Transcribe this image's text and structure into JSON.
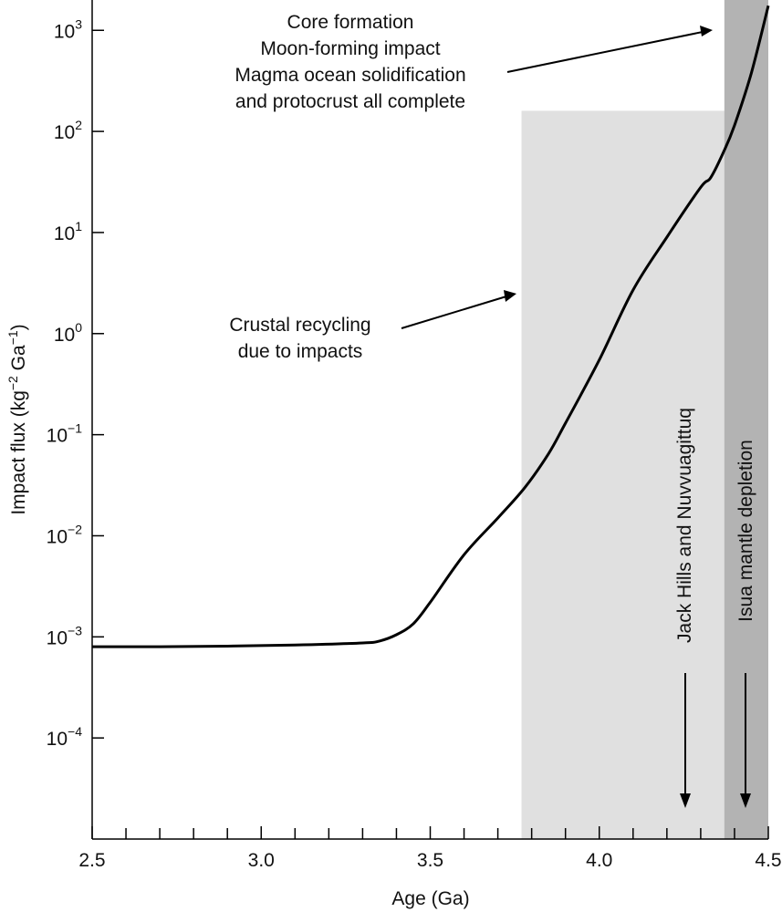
{
  "chart_data": {
    "type": "line",
    "title": "",
    "xlabel": "Age (Ga)",
    "ylabel": {
      "base": "Impact flux (kg",
      "exp1": "−2",
      "mid": " Ga",
      "exp2": "−1",
      "end": ")"
    },
    "x_scale": "linear",
    "y_scale": "log",
    "xlim": [
      2.5,
      4.5
    ],
    "ylim_log10": [
      -5,
      3
    ],
    "x_ticks": [
      {
        "value": 2.5,
        "label": "2.5"
      },
      {
        "value": 3.0,
        "label": "3.0"
      },
      {
        "value": 3.5,
        "label": "3.5"
      },
      {
        "value": 4.0,
        "label": "4.0"
      },
      {
        "value": 4.5,
        "label": "4.5"
      }
    ],
    "x_minor_tick_step": 0.1,
    "y_ticks": [
      {
        "exp": 3,
        "base": "10",
        "sup": "3"
      },
      {
        "exp": 2,
        "base": "10",
        "sup": "2"
      },
      {
        "exp": 1,
        "base": "10",
        "sup": "1"
      },
      {
        "exp": 0,
        "base": "10",
        "sup": "0"
      },
      {
        "exp": -1,
        "base": "10",
        "sup": "−1"
      },
      {
        "exp": -2,
        "base": "10",
        "sup": "−2"
      },
      {
        "exp": -3,
        "base": "10",
        "sup": "−3"
      },
      {
        "exp": -4,
        "base": "10",
        "sup": "−4"
      }
    ],
    "series": [
      {
        "color": "#000000",
        "points": [
          [
            2.5,
            0.0008
          ],
          [
            2.7,
            0.0008
          ],
          [
            2.9,
            0.00081
          ],
          [
            3.1,
            0.00083
          ],
          [
            3.3,
            0.00087
          ],
          [
            3.35,
            0.00091
          ],
          [
            3.4,
            0.00105
          ],
          [
            3.45,
            0.00135
          ],
          [
            3.5,
            0.0022
          ],
          [
            3.6,
            0.0065
          ],
          [
            3.7,
            0.015
          ],
          [
            3.78,
            0.03
          ],
          [
            3.85,
            0.065
          ],
          [
            3.9,
            0.13
          ],
          [
            4.0,
            0.55
          ],
          [
            4.1,
            2.7
          ],
          [
            4.2,
            9
          ],
          [
            4.3,
            28
          ],
          [
            4.33,
            35
          ],
          [
            4.37,
            65
          ],
          [
            4.4,
            115
          ],
          [
            4.45,
            380
          ],
          [
            4.5,
            1750
          ]
        ]
      }
    ],
    "shaded_regions": [
      {
        "name": "crustal-recycling",
        "x": [
          3.77,
          4.5
        ],
        "y_top": 160,
        "color": "#e0e0e0"
      },
      {
        "name": "isua-depletion",
        "x": [
          4.37,
          4.5
        ],
        "y_top": "axis-top",
        "color": "#b3b3b3"
      }
    ],
    "annotations": [
      {
        "name": "core-formation-note",
        "lines": [
          "Core formation",
          "Moon-forming impact",
          "Magma ocean solidification",
          "and protocrust all complete"
        ],
        "arrow_to": [
          4.47,
          1200
        ]
      },
      {
        "name": "crustal-recycling-note",
        "lines": [
          "Crustal recycling",
          "due to impacts"
        ],
        "arrow_to": [
          3.77,
          2.5
        ]
      },
      {
        "name": "jack-hills-label",
        "text": "Jack Hills and Nuvvuagittuq",
        "orientation": "vertical",
        "arrow_x": 4.26
      },
      {
        "name": "isua-label",
        "text": "Isua mantle depletion",
        "orientation": "vertical",
        "arrow_x": 4.43
      }
    ]
  }
}
